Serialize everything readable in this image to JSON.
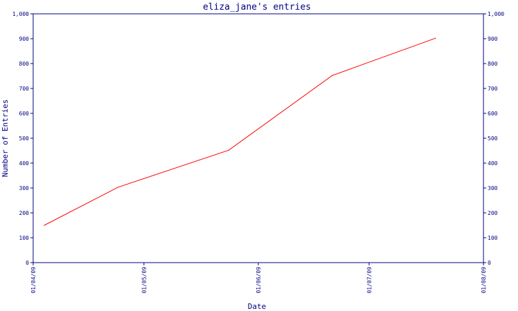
{
  "chart_data": {
    "type": "line",
    "title": "eliza_jane's entries",
    "xlabel": "Date",
    "ylabel": "Number of Entries",
    "x_ticks": [
      "01/04/09",
      "01/05/09",
      "01/06/09",
      "01/07/09",
      "01/08/09"
    ],
    "y_ticks": [
      "0",
      "100",
      "200",
      "300",
      "400",
      "500",
      "600",
      "700",
      "800",
      "900",
      "1,000"
    ],
    "ylim": [
      0,
      1000
    ],
    "xlim": [
      "2009-04-01",
      "2009-08-01"
    ],
    "grid": false,
    "series": [
      {
        "color": "#ff0000",
        "points": [
          {
            "x": "2009-04-04",
            "y": 150
          },
          {
            "x": "2009-04-24",
            "y": 303
          },
          {
            "x": "2009-05-24",
            "y": 452
          },
          {
            "x": "2009-06-21",
            "y": 752
          },
          {
            "x": "2009-07-19",
            "y": 902
          }
        ]
      }
    ],
    "axis_color": "#000080"
  }
}
